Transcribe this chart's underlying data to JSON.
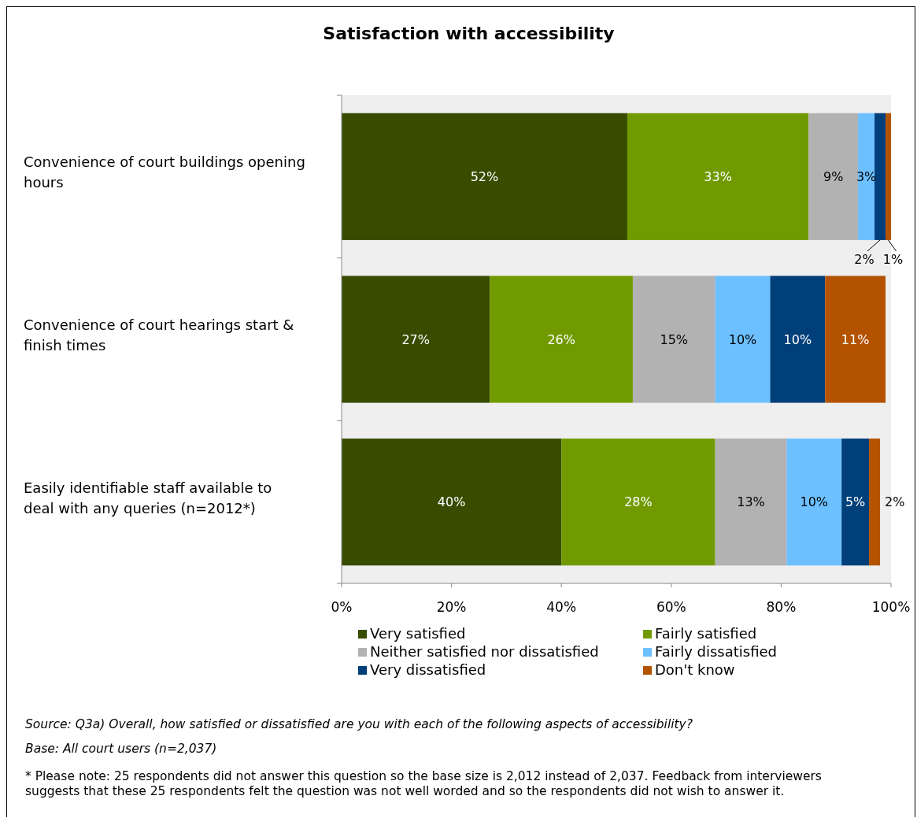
{
  "chart_data": {
    "type": "bar",
    "orientation": "horizontal",
    "stacked": true,
    "title": "Satisfaction with accessibility",
    "categories": [
      "Convenience of court buildings opening hours",
      "Convenience of court hearings start & finish times",
      "Easily identifiable staff available to deal with any queries (n=2012*)"
    ],
    "series": [
      {
        "name": "Very satisfied",
        "color": "#384c00",
        "values": [
          52,
          27,
          40
        ],
        "value_labels": [
          "52%",
          "27%",
          "40%"
        ]
      },
      {
        "name": "Fairly satisfied",
        "color": "#709a00",
        "values": [
          33,
          26,
          28
        ],
        "value_labels": [
          "33%",
          "26%",
          "28%"
        ]
      },
      {
        "name": "Neither satisfied nor dissatisfied",
        "color": "#b2b2b2",
        "values": [
          9,
          15,
          13
        ],
        "value_labels": [
          "9%",
          "15%",
          "13%"
        ]
      },
      {
        "name": "Fairly dissatisfied",
        "color": "#6cc0ff",
        "values": [
          3,
          10,
          10
        ],
        "value_labels": [
          "3%",
          "10%",
          "10%"
        ]
      },
      {
        "name": "Very dissatisfied",
        "color": "#003f7a",
        "values": [
          2,
          10,
          5
        ],
        "value_labels": [
          "2%",
          "10%",
          "5%"
        ]
      },
      {
        "name": "Don't know",
        "color": "#b35300",
        "values": [
          1,
          11,
          2
        ],
        "value_labels": [
          "1%",
          "11%",
          "2%"
        ]
      }
    ],
    "xlim": [
      0,
      100
    ],
    "xticks": [
      {
        "value": 0,
        "label": "0%"
      },
      {
        "value": 20,
        "label": "20%"
      },
      {
        "value": 40,
        "label": "40%"
      },
      {
        "value": 60,
        "label": "60%"
      },
      {
        "value": 80,
        "label": "80%"
      },
      {
        "value": 100,
        "label": "100%"
      }
    ],
    "legend": "bottom",
    "grid": false,
    "annotations": [
      "Source: Q3a) Overall, how satisfied or dissatisfied are you with each of the following aspects of accessibility?",
      "Base: All court users (n=2,037)",
      "* Please note: 25 respondents did not answer this question so the base size is 2,012 instead of 2,037. Feedback from interviewers suggests that these 25 respondents felt the question was not well worded and so the respondents did not wish to answer it."
    ]
  }
}
